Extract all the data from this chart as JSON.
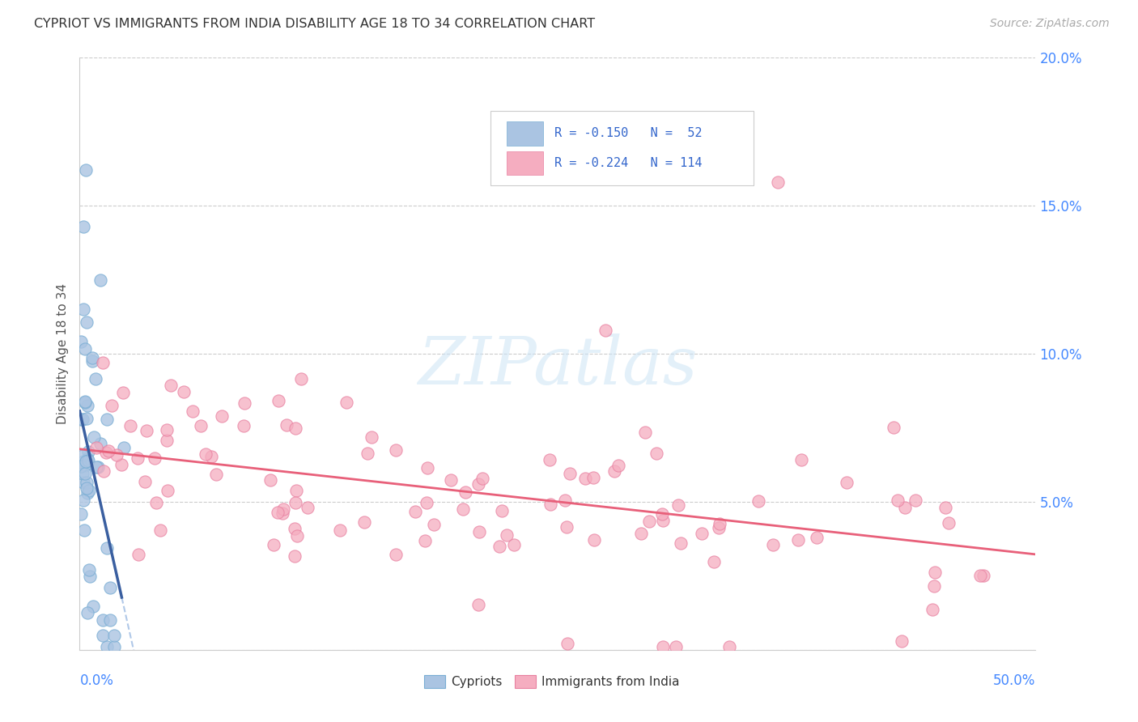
{
  "title": "CYPRIOT VS IMMIGRANTS FROM INDIA DISABILITY AGE 18 TO 34 CORRELATION CHART",
  "source": "Source: ZipAtlas.com",
  "ylabel": "Disability Age 18 to 34",
  "watermark": "ZIPatlas",
  "blue_color": "#aac4e2",
  "pink_color": "#f5adc0",
  "blue_edge": "#7aaed4",
  "pink_edge": "#e880a0",
  "blue_line": "#3a5fa0",
  "pink_line": "#e8607a",
  "dashed_line": "#b0c8e8",
  "xmin": 0.0,
  "xmax": 0.5,
  "ymin": 0.0,
  "ymax": 0.2,
  "blue_r": -0.15,
  "blue_n": 52,
  "pink_r": -0.224,
  "pink_n": 114,
  "marker_size": 120,
  "ytick_color": "#4488ff",
  "xtick_color": "#4488ff",
  "grid_color": "#cccccc",
  "title_color": "#333333",
  "source_color": "#aaaaaa",
  "ylabel_color": "#555555"
}
